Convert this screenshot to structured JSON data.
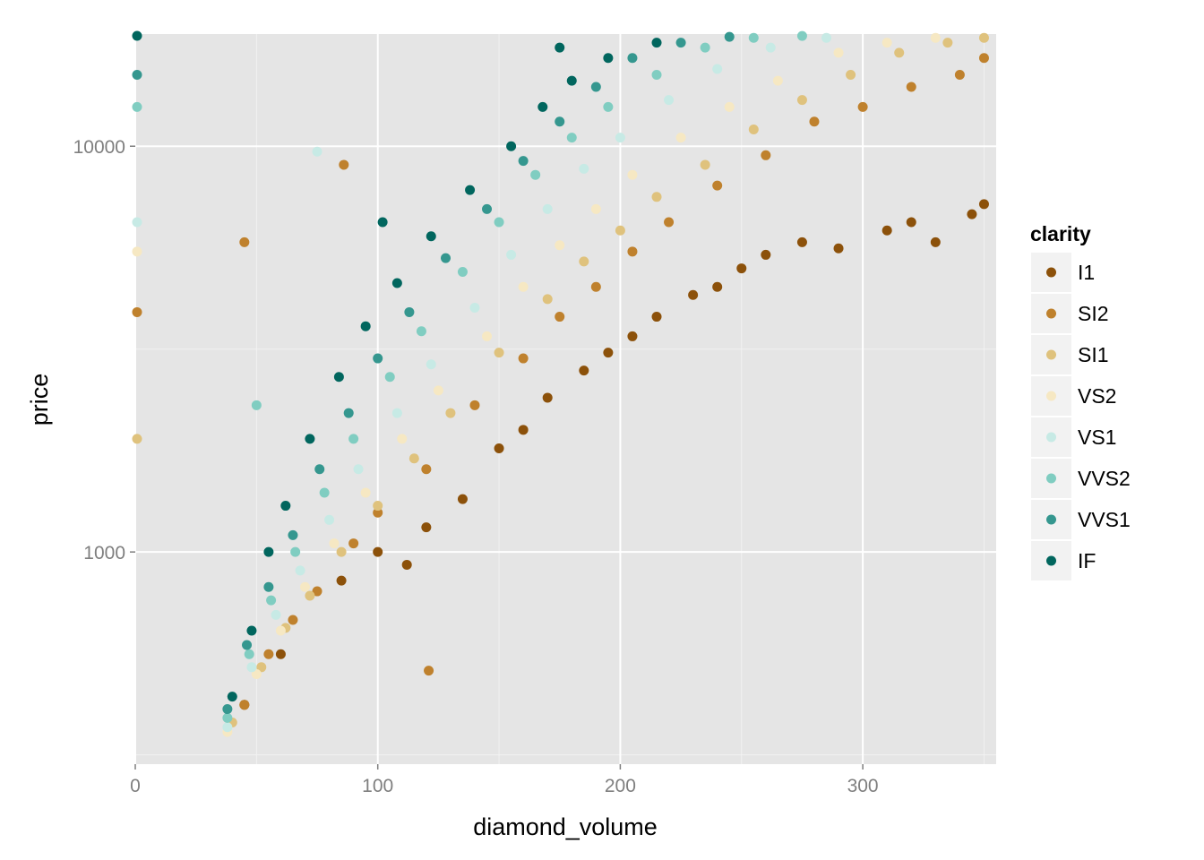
{
  "chart_data": {
    "type": "scatter",
    "title": "",
    "xlabel": "diamond_volume",
    "ylabel": "price",
    "xlim": [
      0,
      355
    ],
    "ylim": [
      300,
      18900
    ],
    "y_scale": "log10",
    "x_ticks": [
      0,
      100,
      200,
      300
    ],
    "x_tick_labels": [
      "0",
      "100",
      "200",
      "300"
    ],
    "y_ticks": [
      1000,
      10000
    ],
    "y_tick_labels": [
      "1000",
      "10000"
    ],
    "grid": true,
    "background": "#e5e5e5",
    "legend": {
      "title": "clarity",
      "position": "right",
      "entries": [
        "I1",
        "SI2",
        "SI1",
        "VS2",
        "VS1",
        "VVS2",
        "VVS1",
        "IF"
      ]
    },
    "series": [
      {
        "name": "I1",
        "color": "#8c510a",
        "points": [
          [
            100,
            1000
          ],
          [
            112,
            930
          ],
          [
            120,
            1150
          ],
          [
            135,
            1350
          ],
          [
            150,
            1800
          ],
          [
            160,
            2000
          ],
          [
            170,
            2400
          ],
          [
            185,
            2800
          ],
          [
            195,
            3100
          ],
          [
            205,
            3400
          ],
          [
            215,
            3800
          ],
          [
            230,
            4300
          ],
          [
            240,
            4500
          ],
          [
            250,
            5000
          ],
          [
            260,
            5400
          ],
          [
            275,
            5800
          ],
          [
            290,
            5600
          ],
          [
            310,
            6200
          ],
          [
            320,
            6500
          ],
          [
            330,
            5800
          ],
          [
            345,
            6800
          ],
          [
            350,
            7200
          ],
          [
            85,
            850
          ],
          [
            60,
            560
          ],
          [
            45,
            420
          ]
        ]
      },
      {
        "name": "SI2",
        "color": "#bf812d",
        "points": [
          [
            45,
            420
          ],
          [
            55,
            560
          ],
          [
            65,
            680
          ],
          [
            75,
            800
          ],
          [
            90,
            1050
          ],
          [
            100,
            1250
          ],
          [
            120,
            1600
          ],
          [
            140,
            2300
          ],
          [
            160,
            3000
          ],
          [
            175,
            3800
          ],
          [
            190,
            4500
          ],
          [
            205,
            5500
          ],
          [
            220,
            6500
          ],
          [
            240,
            8000
          ],
          [
            260,
            9500
          ],
          [
            280,
            11500
          ],
          [
            300,
            12500
          ],
          [
            320,
            14000
          ],
          [
            340,
            15000
          ],
          [
            350,
            16500
          ],
          [
            121,
            510
          ],
          [
            45,
            5800
          ],
          [
            86,
            9000
          ],
          [
            0,
            3900
          ]
        ]
      },
      {
        "name": "SI1",
        "color": "#dfc27d",
        "points": [
          [
            40,
            380
          ],
          [
            52,
            520
          ],
          [
            62,
            650
          ],
          [
            72,
            780
          ],
          [
            85,
            1000
          ],
          [
            100,
            1300
          ],
          [
            115,
            1700
          ],
          [
            130,
            2200
          ],
          [
            150,
            3100
          ],
          [
            170,
            4200
          ],
          [
            185,
            5200
          ],
          [
            200,
            6200
          ],
          [
            215,
            7500
          ],
          [
            235,
            9000
          ],
          [
            255,
            11000
          ],
          [
            275,
            13000
          ],
          [
            295,
            15000
          ],
          [
            315,
            17000
          ],
          [
            335,
            18000
          ],
          [
            350,
            18500
          ],
          [
            0,
            1900
          ]
        ]
      },
      {
        "name": "VS2",
        "color": "#f6e8c3",
        "points": [
          [
            38,
            360
          ],
          [
            50,
            500
          ],
          [
            60,
            640
          ],
          [
            70,
            820
          ],
          [
            82,
            1050
          ],
          [
            95,
            1400
          ],
          [
            110,
            1900
          ],
          [
            125,
            2500
          ],
          [
            145,
            3400
          ],
          [
            160,
            4500
          ],
          [
            175,
            5700
          ],
          [
            190,
            7000
          ],
          [
            205,
            8500
          ],
          [
            225,
            10500
          ],
          [
            245,
            12500
          ],
          [
            265,
            14500
          ],
          [
            290,
            17000
          ],
          [
            310,
            18000
          ],
          [
            330,
            18500
          ],
          [
            0,
            5500
          ]
        ]
      },
      {
        "name": "VS1",
        "color": "#c7eae5",
        "points": [
          [
            38,
            370
          ],
          [
            48,
            520
          ],
          [
            58,
            700
          ],
          [
            68,
            900
          ],
          [
            80,
            1200
          ],
          [
            92,
            1600
          ],
          [
            108,
            2200
          ],
          [
            122,
            2900
          ],
          [
            140,
            4000
          ],
          [
            155,
            5400
          ],
          [
            170,
            7000
          ],
          [
            185,
            8800
          ],
          [
            200,
            10500
          ],
          [
            220,
            13000
          ],
          [
            240,
            15500
          ],
          [
            262,
            17500
          ],
          [
            285,
            18500
          ],
          [
            75,
            9700
          ],
          [
            0,
            6500
          ]
        ]
      },
      {
        "name": "VVS2",
        "color": "#80cdc1",
        "points": [
          [
            38,
            390
          ],
          [
            47,
            560
          ],
          [
            56,
            760
          ],
          [
            66,
            1000
          ],
          [
            78,
            1400
          ],
          [
            90,
            1900
          ],
          [
            105,
            2700
          ],
          [
            118,
            3500
          ],
          [
            135,
            4900
          ],
          [
            150,
            6500
          ],
          [
            165,
            8500
          ],
          [
            180,
            10500
          ],
          [
            195,
            12500
          ],
          [
            215,
            15000
          ],
          [
            235,
            17500
          ],
          [
            255,
            18500
          ],
          [
            275,
            18700
          ],
          [
            50,
            2300
          ],
          [
            0,
            12500
          ]
        ]
      },
      {
        "name": "VVS1",
        "color": "#35978f",
        "points": [
          [
            38,
            410
          ],
          [
            46,
            590
          ],
          [
            55,
            820
          ],
          [
            65,
            1100
          ],
          [
            76,
            1600
          ],
          [
            88,
            2200
          ],
          [
            100,
            3000
          ],
          [
            113,
            3900
          ],
          [
            128,
            5300
          ],
          [
            145,
            7000
          ],
          [
            160,
            9200
          ],
          [
            175,
            11500
          ],
          [
            190,
            14000
          ],
          [
            205,
            16500
          ],
          [
            225,
            18000
          ],
          [
            245,
            18600
          ],
          [
            0,
            15000
          ]
        ]
      },
      {
        "name": "IF",
        "color": "#01665e",
        "points": [
          [
            40,
            440
          ],
          [
            48,
            640
          ],
          [
            55,
            1000
          ],
          [
            62,
            1300
          ],
          [
            72,
            1900
          ],
          [
            84,
            2700
          ],
          [
            95,
            3600
          ],
          [
            108,
            4600
          ],
          [
            122,
            6000
          ],
          [
            138,
            7800
          ],
          [
            155,
            10000
          ],
          [
            168,
            12500
          ],
          [
            180,
            14500
          ],
          [
            195,
            16500
          ],
          [
            215,
            18000
          ],
          [
            175,
            17500
          ],
          [
            102,
            6500
          ],
          [
            0,
            19000
          ]
        ]
      }
    ]
  }
}
